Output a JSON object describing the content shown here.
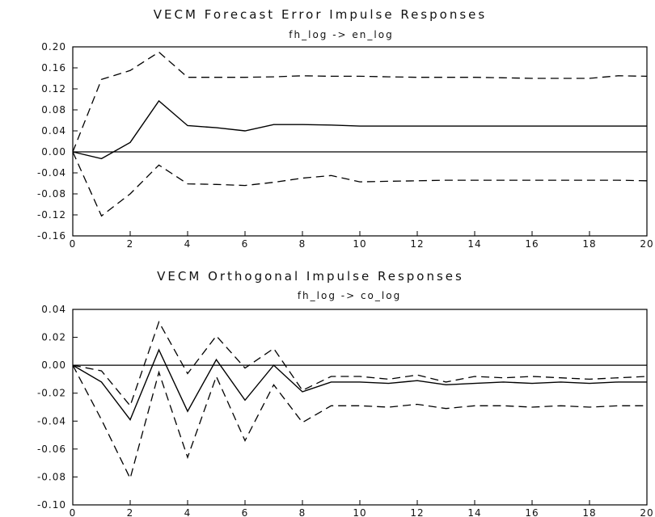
{
  "chart_data": [
    {
      "type": "line",
      "title": "VECM Forecast Error Impulse Responses",
      "subtitle": "fh_log -> en_log",
      "xlim": [
        0,
        20
      ],
      "ylim": [
        -0.16,
        0.2
      ],
      "x_ticks": [
        "0",
        "2",
        "4",
        "6",
        "8",
        "10",
        "12",
        "14",
        "16",
        "18",
        "20"
      ],
      "y_ticks": [
        "0.20",
        "0.16",
        "0.12",
        "0.08",
        "0.04",
        "0.00",
        "-0.04",
        "-0.08",
        "-0.12",
        "-0.16"
      ],
      "zero_line": true,
      "x": [
        0,
        1,
        2,
        3,
        4,
        5,
        6,
        7,
        8,
        9,
        10,
        11,
        12,
        13,
        14,
        15,
        16,
        17,
        18,
        19,
        20
      ],
      "series": [
        {
          "style": "solid",
          "values": [
            0.0,
            -0.013,
            0.018,
            0.097,
            0.05,
            0.046,
            0.04,
            0.052,
            0.052,
            0.051,
            0.049,
            0.049,
            0.049,
            0.049,
            0.049,
            0.049,
            0.049,
            0.049,
            0.049,
            0.049,
            0.049
          ]
        },
        {
          "style": "dashed",
          "values": [
            0.0,
            0.138,
            0.155,
            0.19,
            0.142,
            0.142,
            0.142,
            0.143,
            0.145,
            0.144,
            0.144,
            0.143,
            0.142,
            0.142,
            0.142,
            0.141,
            0.14,
            0.14,
            0.14,
            0.145,
            0.144
          ]
        },
        {
          "style": "dashed",
          "values": [
            0.0,
            -0.122,
            -0.08,
            -0.025,
            -0.061,
            -0.062,
            -0.064,
            -0.058,
            -0.05,
            -0.045,
            -0.057,
            -0.056,
            -0.055,
            -0.054,
            -0.054,
            -0.054,
            -0.054,
            -0.054,
            -0.054,
            -0.054,
            -0.055
          ]
        }
      ]
    },
    {
      "type": "line",
      "title": "VECM Orthogonal Impulse Responses",
      "subtitle": "fh_log -> co_log",
      "xlim": [
        0,
        20
      ],
      "ylim": [
        -0.1,
        0.04
      ],
      "x_ticks": [
        "0",
        "2",
        "4",
        "6",
        "8",
        "10",
        "12",
        "14",
        "16",
        "18",
        "20"
      ],
      "y_ticks": [
        "0.04",
        "0.02",
        "0.00",
        "-0.02",
        "-0.04",
        "-0.06",
        "-0.08",
        "-0.10"
      ],
      "zero_line": true,
      "x": [
        0,
        1,
        2,
        3,
        4,
        5,
        6,
        7,
        8,
        9,
        10,
        11,
        12,
        13,
        14,
        15,
        16,
        17,
        18,
        19,
        20
      ],
      "series": [
        {
          "style": "solid",
          "values": [
            0.0,
            -0.012,
            -0.039,
            0.011,
            -0.033,
            0.004,
            -0.025,
            0.0,
            -0.019,
            -0.012,
            -0.012,
            -0.013,
            -0.011,
            -0.014,
            -0.013,
            -0.012,
            -0.013,
            -0.012,
            -0.013,
            -0.012,
            -0.012
          ]
        },
        {
          "style": "dashed",
          "values": [
            0.0,
            -0.004,
            -0.029,
            0.031,
            -0.006,
            0.021,
            -0.002,
            0.012,
            -0.018,
            -0.008,
            -0.008,
            -0.01,
            -0.007,
            -0.012,
            -0.008,
            -0.009,
            -0.008,
            -0.009,
            -0.01,
            -0.009,
            -0.008
          ]
        },
        {
          "style": "dashed",
          "values": [
            0.0,
            -0.039,
            -0.081,
            -0.005,
            -0.066,
            -0.008,
            -0.054,
            -0.014,
            -0.041,
            -0.029,
            -0.029,
            -0.03,
            -0.028,
            -0.031,
            -0.029,
            -0.029,
            -0.03,
            -0.029,
            -0.03,
            -0.029,
            -0.029
          ]
        }
      ]
    }
  ]
}
